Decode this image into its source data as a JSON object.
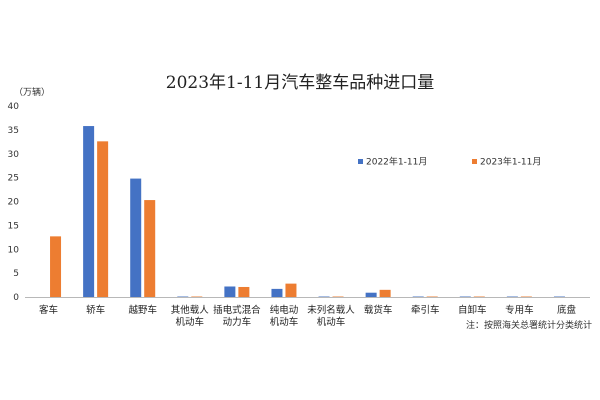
{
  "chart_data": {
    "type": "bar",
    "title": "2023年1-11月汽车整车品种进口量",
    "ylabel": "（万辆）",
    "ylim": [
      0,
      40
    ],
    "yticks": [
      0,
      5,
      10,
      15,
      20,
      25,
      30,
      35,
      40
    ],
    "grid": false,
    "legend_position": "top-right",
    "categories": [
      [
        "客车"
      ],
      [
        "轿车"
      ],
      [
        "越野车"
      ],
      [
        "其他载人",
        "机动车"
      ],
      [
        "插电式混合",
        "动力车"
      ],
      [
        "纯电动",
        "机动车"
      ],
      [
        "未列名载人",
        "机动车"
      ],
      [
        "载货车"
      ],
      [
        "牵引车"
      ],
      [
        "自卸车"
      ],
      [
        "专用车"
      ],
      [
        "底盘"
      ]
    ],
    "series": [
      {
        "name": "2022年1-11月",
        "color": "#4472C4",
        "values": [
          0.0,
          35.8,
          24.8,
          0.1,
          2.2,
          1.7,
          0.1,
          0.9,
          0.1,
          0.1,
          0.1,
          0.1
        ]
      },
      {
        "name": "2023年1-11月",
        "color": "#ED7D31",
        "values": [
          12.7,
          32.6,
          20.3,
          0.1,
          2.1,
          2.8,
          0.1,
          1.5,
          0.1,
          0.1,
          0.1,
          0.0
        ]
      }
    ],
    "note": "注：按照海关总署统计分类统计"
  }
}
